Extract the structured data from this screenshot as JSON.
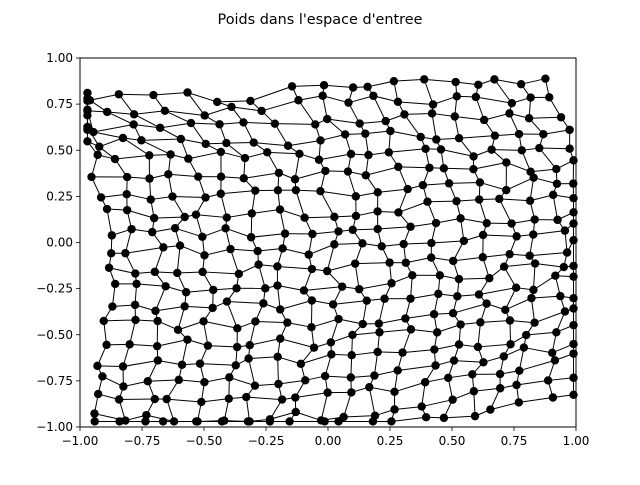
{
  "chart_data": {
    "type": "scatter",
    "title": "Poids dans l'espace d'entree",
    "xlabel": "",
    "ylabel": "",
    "xlim": [
      -1.0,
      1.0
    ],
    "ylim": [
      -1.0,
      1.0
    ],
    "xticks": [
      "−1.00",
      "−0.75",
      "−0.50",
      "−0.25",
      "0.00",
      "0.25",
      "0.50",
      "0.75",
      "1.00"
    ],
    "yticks": [
      "−1.00",
      "−0.75",
      "−0.50",
      "−0.25",
      "0.00",
      "0.25",
      "0.50",
      "0.75",
      "1.00"
    ],
    "grid": false,
    "legend": "none",
    "marker_color": "#000000",
    "line_color": "#000000",
    "grid_size": [
      20,
      20
    ]
  }
}
